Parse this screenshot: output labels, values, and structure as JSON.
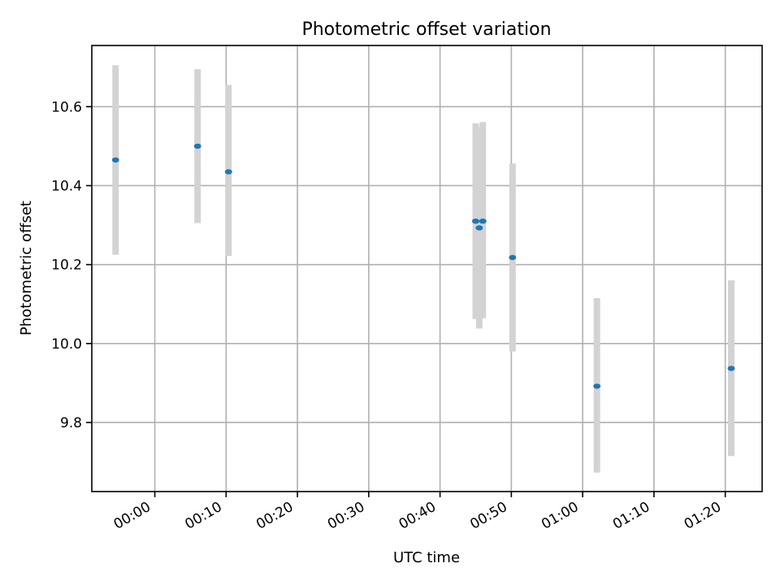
{
  "chart_data": {
    "type": "scatter",
    "title": "Photometric offset variation",
    "xlabel": "UTC time",
    "ylabel": "Photometric offset",
    "x_tick_labels": [
      "00:00",
      "00:10",
      "00:20",
      "00:30",
      "00:40",
      "00:50",
      "01:00",
      "01:10",
      "01:20"
    ],
    "y_tick_labels": [
      "9.8",
      "10.0",
      "10.2",
      "10.4",
      "10.6"
    ],
    "xlim": [
      "23:51:10",
      "01:25:10"
    ],
    "ylim": [
      9.625,
      10.755
    ],
    "grid": true,
    "colors": {
      "point": "#1f77b4",
      "errorbar": "#d3d3d3",
      "grid": "#b0b0b0"
    },
    "series": [
      {
        "points": [
          {
            "x": "23:54:30",
            "y": 10.465,
            "yerr_low": 10.225,
            "yerr_high": 10.705
          },
          {
            "x": "00:06:00",
            "y": 10.5,
            "yerr_low": 10.305,
            "yerr_high": 10.695
          },
          {
            "x": "00:10:20",
            "y": 10.435,
            "yerr_low": 10.222,
            "yerr_high": 10.655
          },
          {
            "x": "00:45:00",
            "y": 10.31,
            "yerr_low": 10.062,
            "yerr_high": 10.558
          },
          {
            "x": "00:45:30",
            "y": 10.293,
            "yerr_low": 10.038,
            "yerr_high": 10.548
          },
          {
            "x": "00:46:00",
            "y": 10.31,
            "yerr_low": 10.064,
            "yerr_high": 10.561
          },
          {
            "x": "00:50:10",
            "y": 10.218,
            "yerr_low": 9.98,
            "yerr_high": 10.456
          },
          {
            "x": "01:02:00",
            "y": 9.892,
            "yerr_low": 9.673,
            "yerr_high": 10.115
          },
          {
            "x": "01:20:50",
            "y": 9.937,
            "yerr_low": 9.715,
            "yerr_high": 10.16
          }
        ]
      }
    ]
  }
}
